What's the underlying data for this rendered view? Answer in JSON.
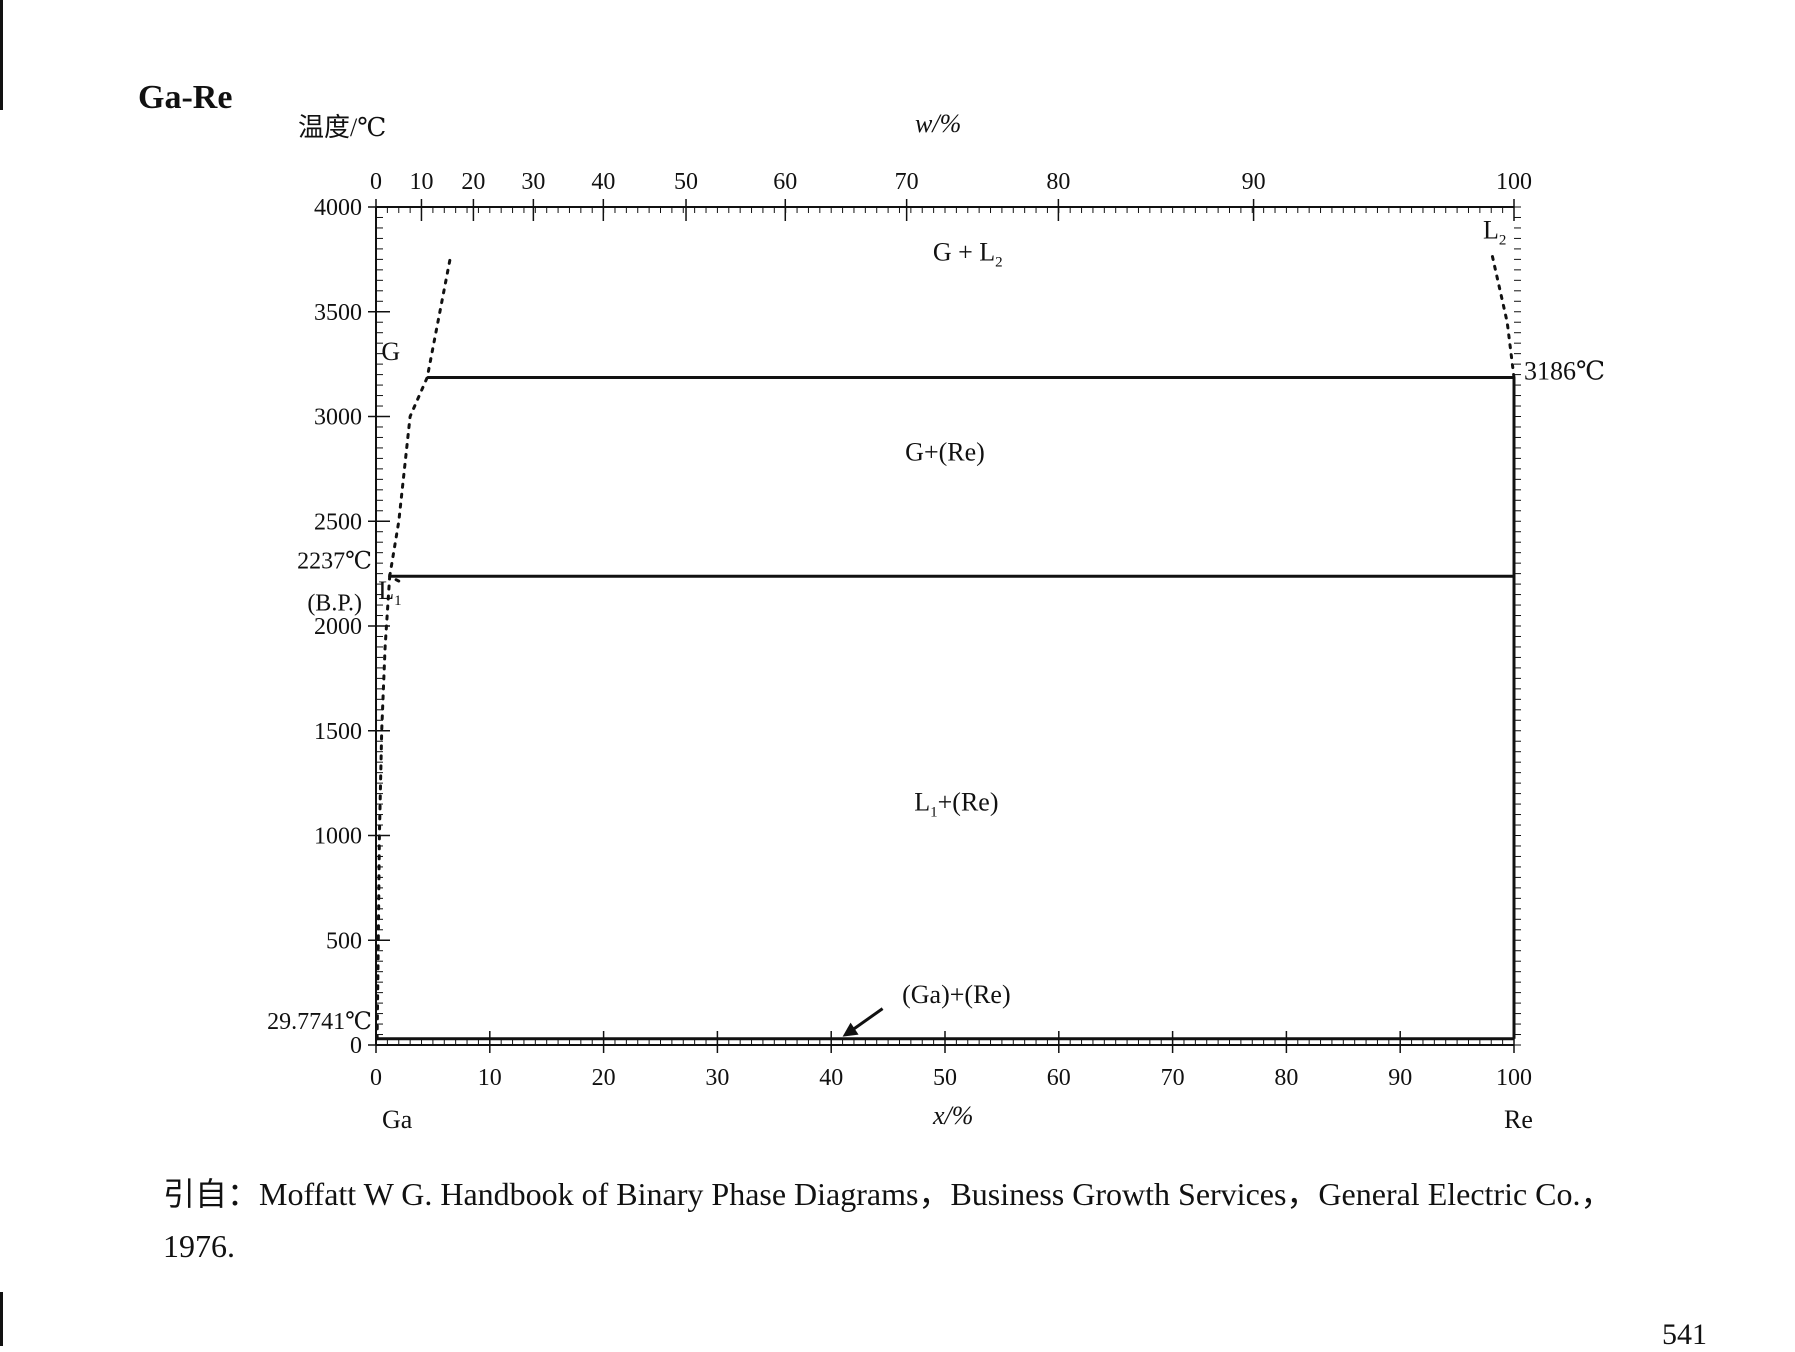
{
  "title": "Ga-Re",
  "chart_data": {
    "type": "phase-diagram",
    "system": "Ga-Re",
    "ylabel": "温度/℃",
    "xlabel_top": "w/%",
    "xlabel_bottom": "x/%",
    "component_left": "Ga",
    "component_right": "Re",
    "ylim": [
      0,
      4000
    ],
    "xlim": [
      0,
      100
    ],
    "y_ticks": [
      "0",
      "500",
      "1000",
      "1500",
      "2000",
      "2500",
      "3000",
      "3500",
      "4000"
    ],
    "x_ticks_bottom": [
      "0",
      "10",
      "20",
      "30",
      "40",
      "50",
      "60",
      "70",
      "80",
      "90",
      "100"
    ],
    "x_ticks_top": [
      "0",
      "10",
      "20",
      "30",
      "40",
      "50",
      "60",
      "70",
      "80",
      "90",
      "100"
    ],
    "special_temperatures": [
      {
        "label": "29.7741℃",
        "value": 29.7741
      },
      {
        "label": "2237℃",
        "value": 2237
      },
      {
        "label": "(B.P.)",
        "value": 2237
      },
      {
        "label": "3186℃",
        "value": 3186
      }
    ],
    "phase_labels": [
      {
        "text": "G + L",
        "sub": "2"
      },
      {
        "text": "G+(Re)",
        "sub": ""
      },
      {
        "text": "L",
        "sub": "1",
        "tail": "+(Re)"
      },
      {
        "text": "(Ga)+(Re)",
        "sub": ""
      },
      {
        "text": "G",
        "sub": ""
      },
      {
        "text": "L",
        "sub": "1"
      },
      {
        "text": "L",
        "sub": "2"
      }
    ],
    "boundaries": [
      {
        "name": "eutectic isotherm",
        "style": "solid",
        "points": [
          [
            0.1,
            29.7741
          ],
          [
            100,
            29.7741
          ]
        ]
      },
      {
        "name": "boiling isotherm",
        "style": "solid",
        "points": [
          [
            1.2,
            2237
          ],
          [
            100,
            2237
          ]
        ]
      },
      {
        "name": "upper isotherm",
        "style": "solid",
        "points": [
          [
            4.5,
            3186
          ],
          [
            100,
            3186
          ]
        ]
      },
      {
        "name": "Re solidus",
        "style": "solid",
        "points": [
          [
            100,
            29.7741
          ],
          [
            100,
            3186
          ]
        ]
      },
      {
        "name": "liquidus L1",
        "style": "dotted",
        "points": [
          [
            0.1,
            29.7741
          ],
          [
            0.2,
            500
          ],
          [
            0.3,
            1000
          ],
          [
            0.5,
            1500
          ],
          [
            0.8,
            1900
          ],
          [
            1.2,
            2237
          ],
          [
            2.5,
            2200
          ]
        ]
      },
      {
        "name": "gas boundary",
        "style": "dotted",
        "points": [
          [
            1.2,
            2237
          ],
          [
            2.0,
            2500
          ],
          [
            3.0,
            3000
          ],
          [
            4.5,
            3186
          ],
          [
            6.5,
            3750
          ]
        ]
      },
      {
        "name": "liquidus L2",
        "style": "dotted",
        "points": [
          [
            100,
            3186
          ],
          [
            99.4,
            3450
          ],
          [
            98.0,
            3790
          ]
        ]
      }
    ]
  },
  "citation": {
    "line1": "引自：Moffatt W G. Handbook of Binary Phase Diagrams，Business Growth Services，General Electric Co.，",
    "line2": "1976."
  },
  "page_number": "541"
}
